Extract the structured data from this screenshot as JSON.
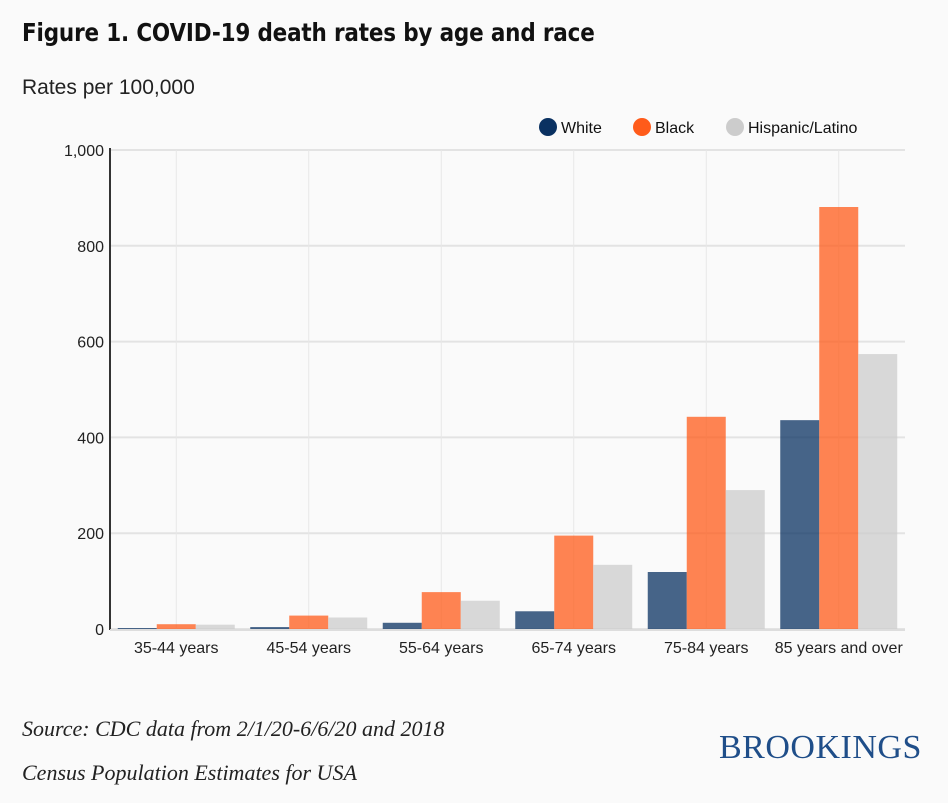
{
  "chart_data": {
    "type": "bar",
    "title": "Figure 1. COVID-19 death rates by age and race",
    "ylabel": "Rates per 100,000",
    "xlabel": "",
    "categories": [
      "35-44 years",
      "45-54 years",
      "55-64 years",
      "65-74 years",
      "75-84 years",
      "85 years and over"
    ],
    "series": [
      {
        "name": "White",
        "color": "#0a3161",
        "values": [
          2,
          4,
          13,
          37,
          119,
          436
        ]
      },
      {
        "name": "Black",
        "color": "#ff5b1a",
        "values": [
          10,
          28,
          77,
          195,
          443,
          881
        ]
      },
      {
        "name": "Hispanic/Latino",
        "color": "#cccccc",
        "values": [
          9,
          24,
          59,
          134,
          290,
          574
        ]
      }
    ],
    "ylim": [
      0,
      1000
    ],
    "yticks": [
      0,
      200,
      400,
      600,
      800,
      1000
    ],
    "ytick_labels": [
      "0",
      "200",
      "400",
      "600",
      "800",
      "1,000"
    ],
    "grid": true,
    "legend": "top-right"
  },
  "source": [
    "Source: CDC data from 2/1/20-6/6/20 and 2018",
    "Census Population Estimates for USA"
  ],
  "logo": "BROOKINGS"
}
